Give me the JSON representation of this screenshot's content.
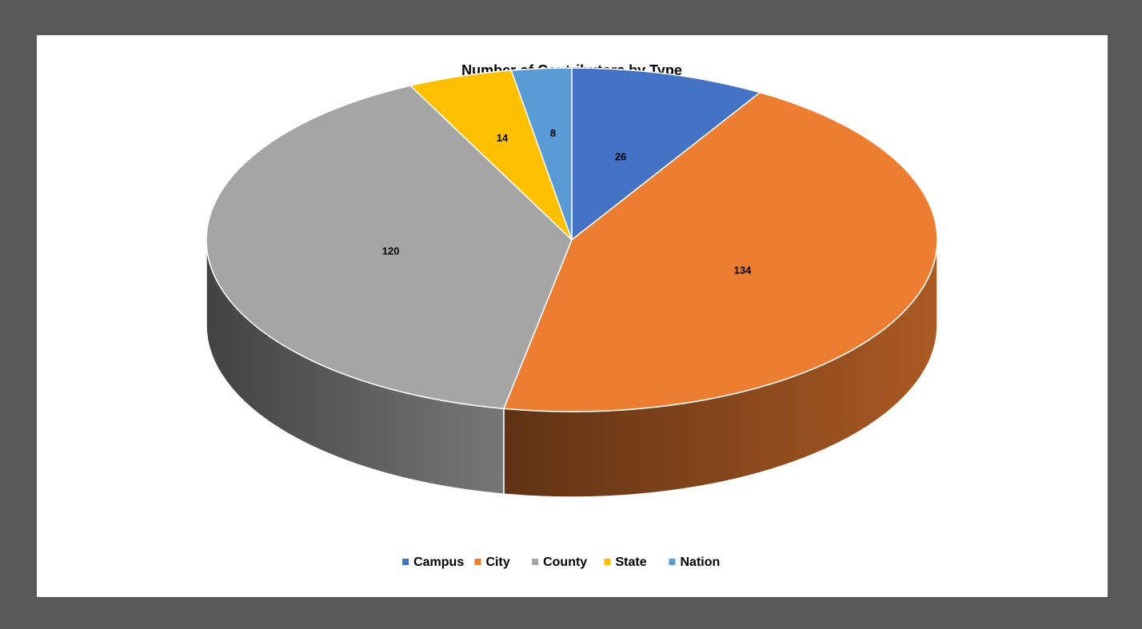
{
  "chart_data": {
    "type": "pie",
    "title": "Number of Contributors by Type",
    "categories": [
      "Campus",
      "City",
      "County",
      "State",
      "Nation"
    ],
    "values": [
      26,
      134,
      120,
      14,
      8
    ],
    "colors": [
      "#4472C4",
      "#ED7D31",
      "#A5A5A5",
      "#FFC000",
      "#5B9BD5"
    ],
    "legend_position": "bottom",
    "data_labels": true,
    "style": "3d"
  }
}
